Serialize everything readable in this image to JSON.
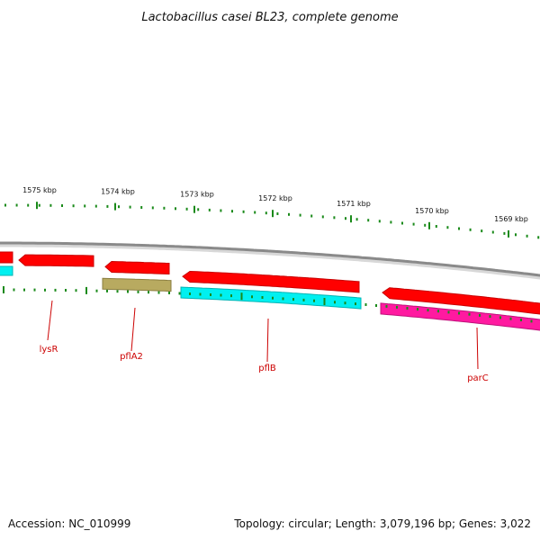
{
  "map": {
    "title": "Lactobacillus casei BL23, complete genome",
    "accession": "Accession: NC_010999",
    "summary": "Topology: circular; Length: 3,079,196 bp; Genes: 3,022"
  },
  "colors": {
    "backbone": "#8a8a8a",
    "cds": "#ff0000",
    "cyan": "#00f0f0",
    "olive": "#b8aa60",
    "magenta": "#ff1aa0",
    "tick": "#1a8a1a",
    "label": "#cc0000",
    "leader": "#cc0000"
  },
  "tick_labels": [
    {
      "text": "1575 kbp",
      "kbp": 1575
    },
    {
      "text": "1574 kbp",
      "kbp": 1574
    },
    {
      "text": "1573 kbp",
      "kbp": 1573
    },
    {
      "text": "1572 kbp",
      "kbp": 1572
    },
    {
      "text": "1571 kbp",
      "kbp": 1571
    },
    {
      "text": "1570 kbp",
      "kbp": 1570
    },
    {
      "text": "1569 kbp",
      "kbp": 1569
    }
  ],
  "gene_labels": [
    {
      "text": "lysR"
    },
    {
      "text": "pflA2"
    },
    {
      "text": "pflB"
    },
    {
      "text": "parC"
    }
  ]
}
